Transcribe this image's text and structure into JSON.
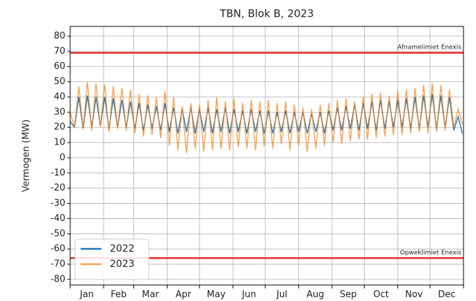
{
  "chart_data": {
    "type": "line",
    "title": "TBN, Blok B, 2023",
    "ylabel": "Vermogen (MW)",
    "categories": [
      "Jan",
      "Feb",
      "Mar",
      "Apr",
      "May",
      "Jun",
      "Jul",
      "Aug",
      "Sep",
      "Oct",
      "Nov",
      "Dec"
    ],
    "xlim": [
      0,
      365
    ],
    "xticks": [
      0,
      31,
      59,
      90,
      120,
      151,
      181,
      212,
      243,
      273,
      304,
      334,
      365
    ],
    "ylim": [
      -83.7,
      86.4
    ],
    "yticks": [
      -80,
      -70,
      -60,
      -50,
      -40,
      -30,
      -20,
      -10,
      0,
      10,
      20,
      30,
      40,
      50,
      60,
      70,
      80
    ],
    "grid": true,
    "legend": "lower left",
    "x": [
      0,
      4,
      8,
      12,
      16,
      20,
      24,
      28,
      32,
      36,
      40,
      44,
      48,
      52,
      56,
      60,
      64,
      68,
      72,
      76,
      80,
      84,
      88,
      92,
      96,
      100,
      104,
      108,
      112,
      116,
      120,
      124,
      128,
      132,
      136,
      140,
      144,
      148,
      152,
      156,
      160,
      164,
      168,
      172,
      176,
      180,
      184,
      188,
      192,
      196,
      200,
      204,
      208,
      212,
      216,
      220,
      224,
      228,
      232,
      236,
      240,
      244,
      248,
      252,
      256,
      260,
      264,
      268,
      272,
      276,
      280,
      284,
      288,
      292,
      296,
      300,
      304,
      308,
      312,
      316,
      320,
      324,
      328,
      332,
      336,
      340,
      344,
      348,
      352,
      356,
      360,
      364
    ],
    "series": [
      {
        "name": "2022",
        "color": "#1f77b4",
        "values": [
          24,
          20,
          40,
          19,
          41,
          20,
          40,
          21,
          40,
          19,
          39,
          20,
          38,
          20,
          37,
          19,
          36,
          18,
          35,
          19,
          34,
          18,
          36,
          17,
          33,
          16,
          32,
          17,
          33,
          16,
          32,
          17,
          33,
          16,
          32,
          17,
          33,
          16,
          32,
          17,
          31,
          16,
          32,
          17,
          31,
          16,
          31,
          16,
          30,
          17,
          31,
          16,
          30,
          17,
          30,
          16,
          29,
          17,
          30,
          16,
          31,
          18,
          33,
          18,
          34,
          19,
          35,
          18,
          36,
          19,
          37,
          18,
          38,
          19,
          37,
          20,
          38,
          20,
          39,
          19,
          40,
          19,
          41,
          20,
          42,
          19,
          41,
          20,
          40,
          18,
          27,
          16
        ]
      },
      {
        "name": "2023",
        "color": "#ff7f0e",
        "values": [
          30,
          20,
          47,
          19,
          50,
          18,
          49,
          20,
          48,
          17,
          47,
          19,
          46,
          18,
          45,
          16,
          42,
          14,
          41,
          15,
          40,
          13,
          44,
          8,
          40,
          5,
          34,
          3,
          36,
          6,
          35,
          4,
          38,
          5,
          40,
          6,
          37,
          5,
          39,
          7,
          36,
          6,
          38,
          5,
          37,
          8,
          38,
          6,
          36,
          9,
          37,
          5,
          35,
          8,
          33,
          4,
          32,
          6,
          35,
          8,
          36,
          10,
          38,
          9,
          39,
          11,
          37,
          12,
          40,
          12,
          42,
          13,
          43,
          14,
          41,
          15,
          44,
          15,
          45,
          16,
          46,
          17,
          48,
          16,
          49,
          17,
          48,
          18,
          45,
          20,
          32,
          22
        ]
      }
    ],
    "hlines": [
      {
        "value": 69,
        "label": "Afnamelimiet Enexis",
        "color": "#e8282b"
      },
      {
        "value": -66,
        "label": "Opweklimiet Enexis",
        "color": "#e8282b"
      }
    ]
  }
}
